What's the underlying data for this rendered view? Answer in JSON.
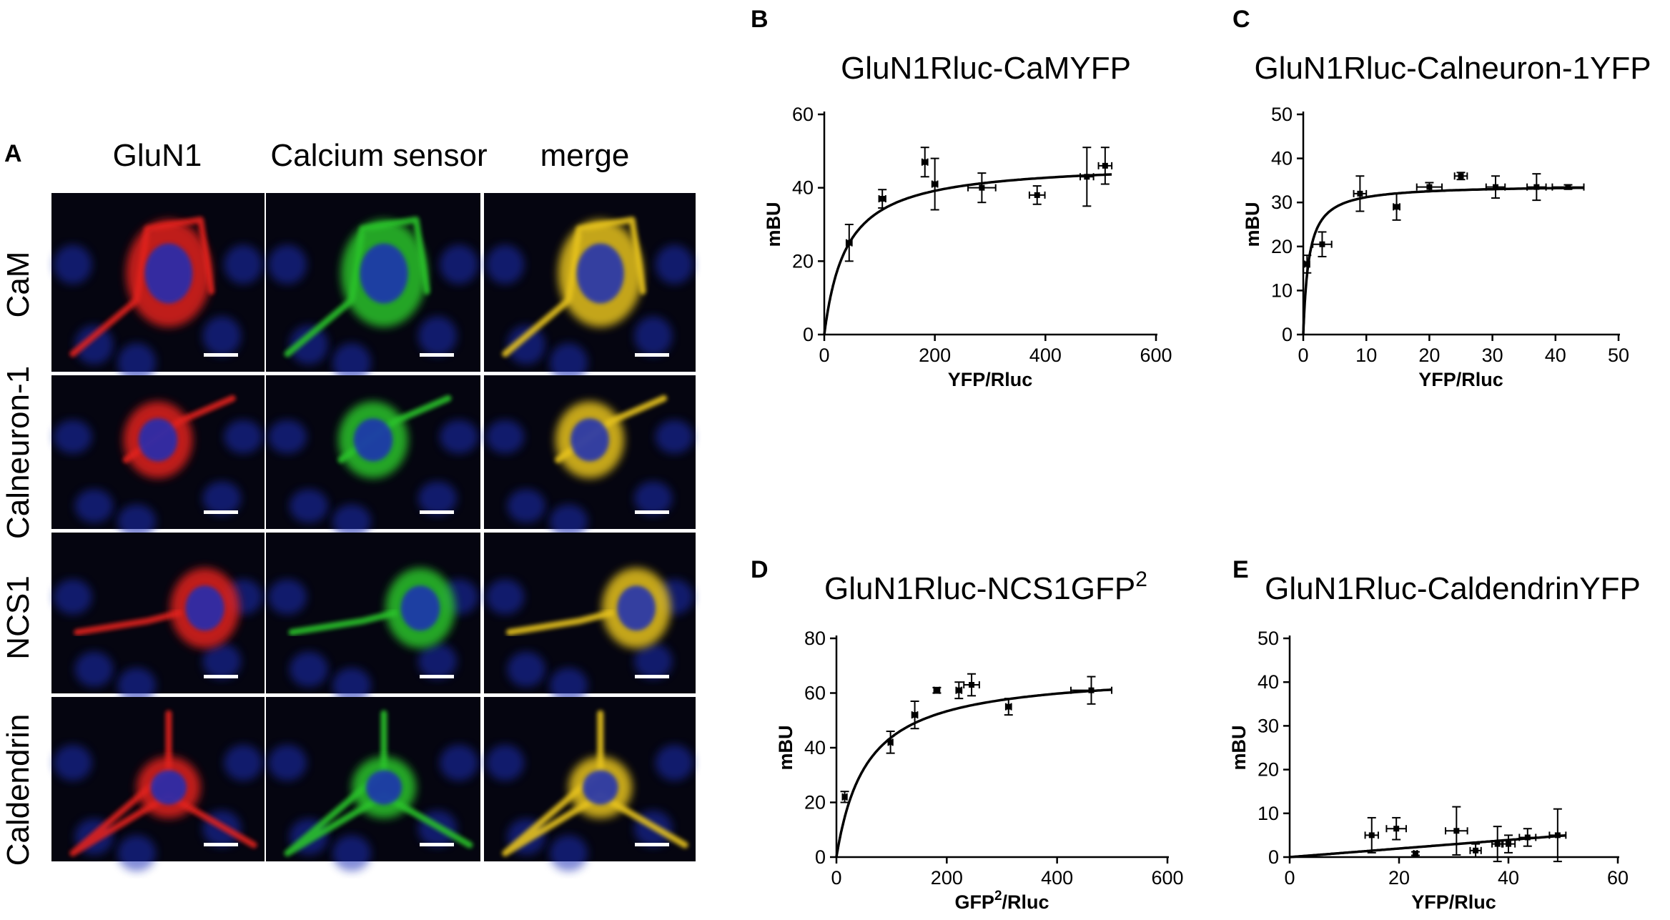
{
  "panel_labels": [
    "A",
    "B",
    "C",
    "D",
    "E"
  ],
  "panel_a": {
    "columns": [
      "GluN1",
      "Calcium sensor",
      "merge"
    ],
    "rows": [
      "CaM",
      "Calneuron-1",
      "NCS1",
      "Caldendrin"
    ],
    "colors": {
      "red": "#e0201a",
      "green": "#29c22a",
      "blue": "#1a2fb8",
      "yellow": "#e6c21e",
      "scalebar": "#ffffff"
    }
  },
  "chart_data": [
    {
      "panel": "B",
      "type": "scatter",
      "fit": "hyperbola",
      "title": "GluN1Rluc-CaMYFP",
      "xlabel": "YFP/Rluc",
      "ylabel": "mBU",
      "xlim": [
        0,
        600
      ],
      "ylim": [
        0,
        60
      ],
      "xticks": [
        "0",
        "200",
        "400",
        "600"
      ],
      "yticks": [
        "0",
        "20",
        "40",
        "60"
      ],
      "points": [
        {
          "x": 45,
          "y": 25,
          "xerr": 5,
          "yerr": 5
        },
        {
          "x": 105,
          "y": 37,
          "xerr": 6,
          "yerr": 2.5
        },
        {
          "x": 182,
          "y": 47,
          "xerr": 5,
          "yerr": 4
        },
        {
          "x": 200,
          "y": 41,
          "xerr": 5,
          "yerr": 7
        },
        {
          "x": 285,
          "y": 40,
          "xerr": 25,
          "yerr": 4
        },
        {
          "x": 385,
          "y": 38,
          "xerr": 14,
          "yerr": 2.5
        },
        {
          "x": 475,
          "y": 43,
          "xerr": 12,
          "yerr": 8
        },
        {
          "x": 508,
          "y": 46,
          "xerr": 12,
          "yerr": 5
        }
      ],
      "fit_params": {
        "bmax": 47,
        "kd": 40
      }
    },
    {
      "panel": "C",
      "type": "scatter",
      "fit": "hyperbola",
      "title": "GluN1Rluc-Calneuron-1YFP",
      "xlabel": "YFP/Rluc",
      "ylabel": "mBU",
      "xlim": [
        0,
        50
      ],
      "ylim": [
        0,
        50
      ],
      "xticks": [
        "0",
        "10",
        "20",
        "30",
        "40",
        "50"
      ],
      "yticks": [
        "0",
        "10",
        "20",
        "30",
        "40",
        "50"
      ],
      "points": [
        {
          "x": 0.6,
          "y": 16,
          "xerr": 0.4,
          "yerr": 2
        },
        {
          "x": 3,
          "y": 20.5,
          "xerr": 1.5,
          "yerr": 2.8
        },
        {
          "x": 9,
          "y": 32,
          "xerr": 1,
          "yerr": 4
        },
        {
          "x": 14.8,
          "y": 29,
          "xerr": 0.5,
          "yerr": 3
        },
        {
          "x": 20,
          "y": 33.5,
          "xerr": 2,
          "yerr": 1
        },
        {
          "x": 25,
          "y": 36,
          "xerr": 1,
          "yerr": 0.8
        },
        {
          "x": 30.5,
          "y": 33.5,
          "xerr": 1.5,
          "yerr": 2.5
        },
        {
          "x": 37,
          "y": 33.5,
          "xerr": 1.5,
          "yerr": 3
        },
        {
          "x": 42,
          "y": 33.5,
          "xerr": 2.5,
          "yerr": 0.5
        }
      ],
      "fit_params": {
        "bmax": 34,
        "kd": 0.9
      }
    },
    {
      "panel": "D",
      "type": "scatter",
      "fit": "hyperbola",
      "title": "GluN1Rluc-NCS1GFP",
      "title_superscript": "2",
      "xlabel": "GFP",
      "xlabel_superscript": "2",
      "xlabel_suffix": "/Rluc",
      "ylabel": "mBU",
      "xlim": [
        0,
        600
      ],
      "ylim": [
        0,
        80
      ],
      "xticks": [
        "0",
        "200",
        "400",
        "600"
      ],
      "yticks": [
        "0",
        "20",
        "40",
        "60",
        "80"
      ],
      "points": [
        {
          "x": 15,
          "y": 22,
          "xerr": 4,
          "yerr": 2
        },
        {
          "x": 98,
          "y": 42,
          "xerr": 4,
          "yerr": 4
        },
        {
          "x": 142,
          "y": 52,
          "xerr": 5,
          "yerr": 5
        },
        {
          "x": 182,
          "y": 61,
          "xerr": 5,
          "yerr": 1
        },
        {
          "x": 222,
          "y": 61,
          "xerr": 5,
          "yerr": 3
        },
        {
          "x": 245,
          "y": 63,
          "xerr": 14,
          "yerr": 4
        },
        {
          "x": 312,
          "y": 55,
          "xerr": 5,
          "yerr": 3
        },
        {
          "x": 462,
          "y": 61,
          "xerr": 37,
          "yerr": 5
        }
      ],
      "fit_params": {
        "bmax": 68,
        "kd": 55
      }
    },
    {
      "panel": "E",
      "type": "scatter",
      "fit": "linear",
      "title": "GluN1Rluc-CaldendrinYFP",
      "xlabel": "YFP/Rluc",
      "ylabel": "mBU",
      "xlim": [
        0,
        60
      ],
      "ylim": [
        0,
        50
      ],
      "xticks": [
        "0",
        "20",
        "40",
        "60"
      ],
      "yticks": [
        "0",
        "10",
        "20",
        "30",
        "40",
        "50"
      ],
      "points": [
        {
          "x": 15,
          "y": 5,
          "xerr": 1.2,
          "yerr": 4
        },
        {
          "x": 19.5,
          "y": 6.5,
          "xerr": 1.8,
          "yerr": 2.5
        },
        {
          "x": 23,
          "y": 0.8,
          "xerr": 0.3,
          "yerr": 0.4
        },
        {
          "x": 30.5,
          "y": 6,
          "xerr": 2,
          "yerr": 5.5
        },
        {
          "x": 34,
          "y": 1.5,
          "xerr": 1,
          "yerr": 1.5
        },
        {
          "x": 38,
          "y": 3,
          "xerr": 1,
          "yerr": 4
        },
        {
          "x": 40,
          "y": 3,
          "xerr": 1.2,
          "yerr": 2
        },
        {
          "x": 43.5,
          "y": 4.5,
          "xerr": 1.5,
          "yerr": 2
        },
        {
          "x": 49,
          "y": 5,
          "xerr": 1.5,
          "yerr": 6
        }
      ],
      "fit_params": {
        "slope": 0.098,
        "intercept": 0
      }
    }
  ]
}
